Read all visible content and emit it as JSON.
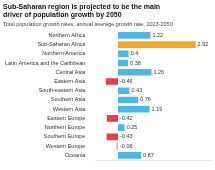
{
  "chart_data": {
    "type": "bar",
    "orientation": "horizontal",
    "title": [
      "Sub-Saharan region is projected to be the main",
      "driver of population growth by 2050"
    ],
    "subtitle": "Total population growth rates, annual average growth rate, 2023-2050",
    "categories": [
      "Northern Africa",
      "Sub-Saharan Africa",
      "Northern America",
      "Latin America and the Caribbean",
      "Central Asia",
      "Eastern Asia",
      "South-eastern Asia",
      "Southern Asia",
      "Western Asia",
      "Eastern Europe",
      "Northern Europe",
      "Southern Europe",
      "Western Europe",
      "Oceania"
    ],
    "values": [
      1.22,
      2.92,
      0.4,
      0.38,
      1.26,
      -0.46,
      0.43,
      0.76,
      1.19,
      -0.42,
      0.25,
      -0.43,
      -0.06,
      0.87
    ],
    "colors": [
      "#4db8e8",
      "#f5a623",
      "#4db8e8",
      "#4db8e8",
      "#4db8e8",
      "#e8404a",
      "#4db8e8",
      "#4db8e8",
      "#4db8e8",
      "#e8404a",
      "#4db8e8",
      "#e8404a",
      "#bbbbbb",
      "#4db8e8"
    ],
    "xlim": [
      -0.85,
      3.5
    ],
    "grid": false,
    "data_labels": true,
    "tick_labels": "y"
  }
}
